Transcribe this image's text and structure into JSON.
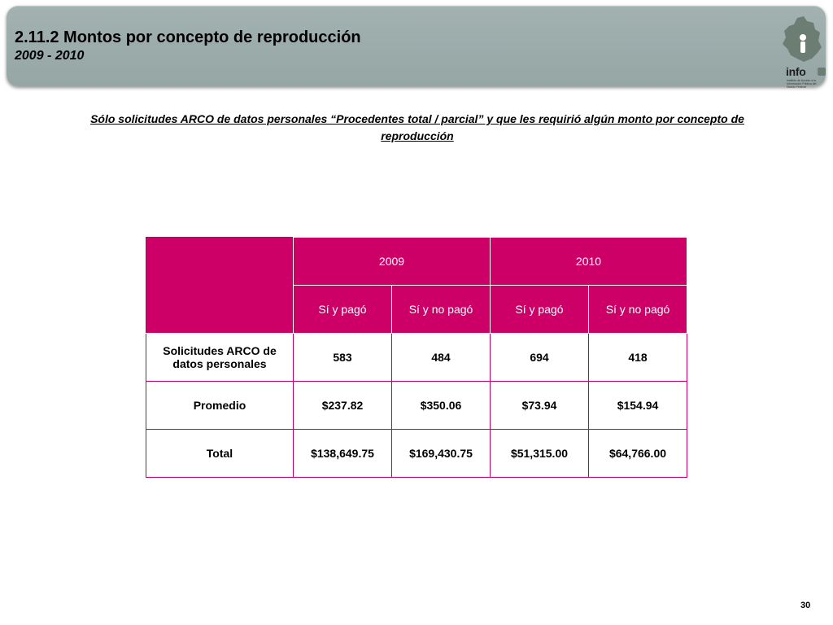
{
  "header": {
    "title": "2.11.2 Montos por concepto de reproducción",
    "subtitle": "2009 - 2010",
    "logo_text": "info",
    "logo_subtext": "Instituto de Acceso a la Información Pública del Distrito Federal"
  },
  "note": "Sólo solicitudes ARCO de datos personales “Procedentes total / parcial” y que les requirió algún monto por concepto de reproducción",
  "table": {
    "years": [
      "2009",
      "2010"
    ],
    "subheaders": [
      "Sí y pagó",
      "Sí y no pagó",
      "Sí y pagó",
      "Sí y no pagó"
    ],
    "rows": [
      {
        "label": "Solicitudes ARCO de datos personales",
        "values": [
          "583",
          "484",
          "694",
          "418"
        ]
      },
      {
        "label": "Promedio",
        "values": [
          "$237.82",
          "$350.06",
          "$73.94",
          "$154.94"
        ]
      },
      {
        "label": "Total",
        "values": [
          "$138,649.75",
          "$169,430.75",
          "$51,315.00",
          "$64,766.00"
        ]
      }
    ]
  },
  "page_number": "30",
  "colors": {
    "header_bg": "#9eadac",
    "table_header": "#cc0066",
    "logo_green": "#6c7d73"
  }
}
